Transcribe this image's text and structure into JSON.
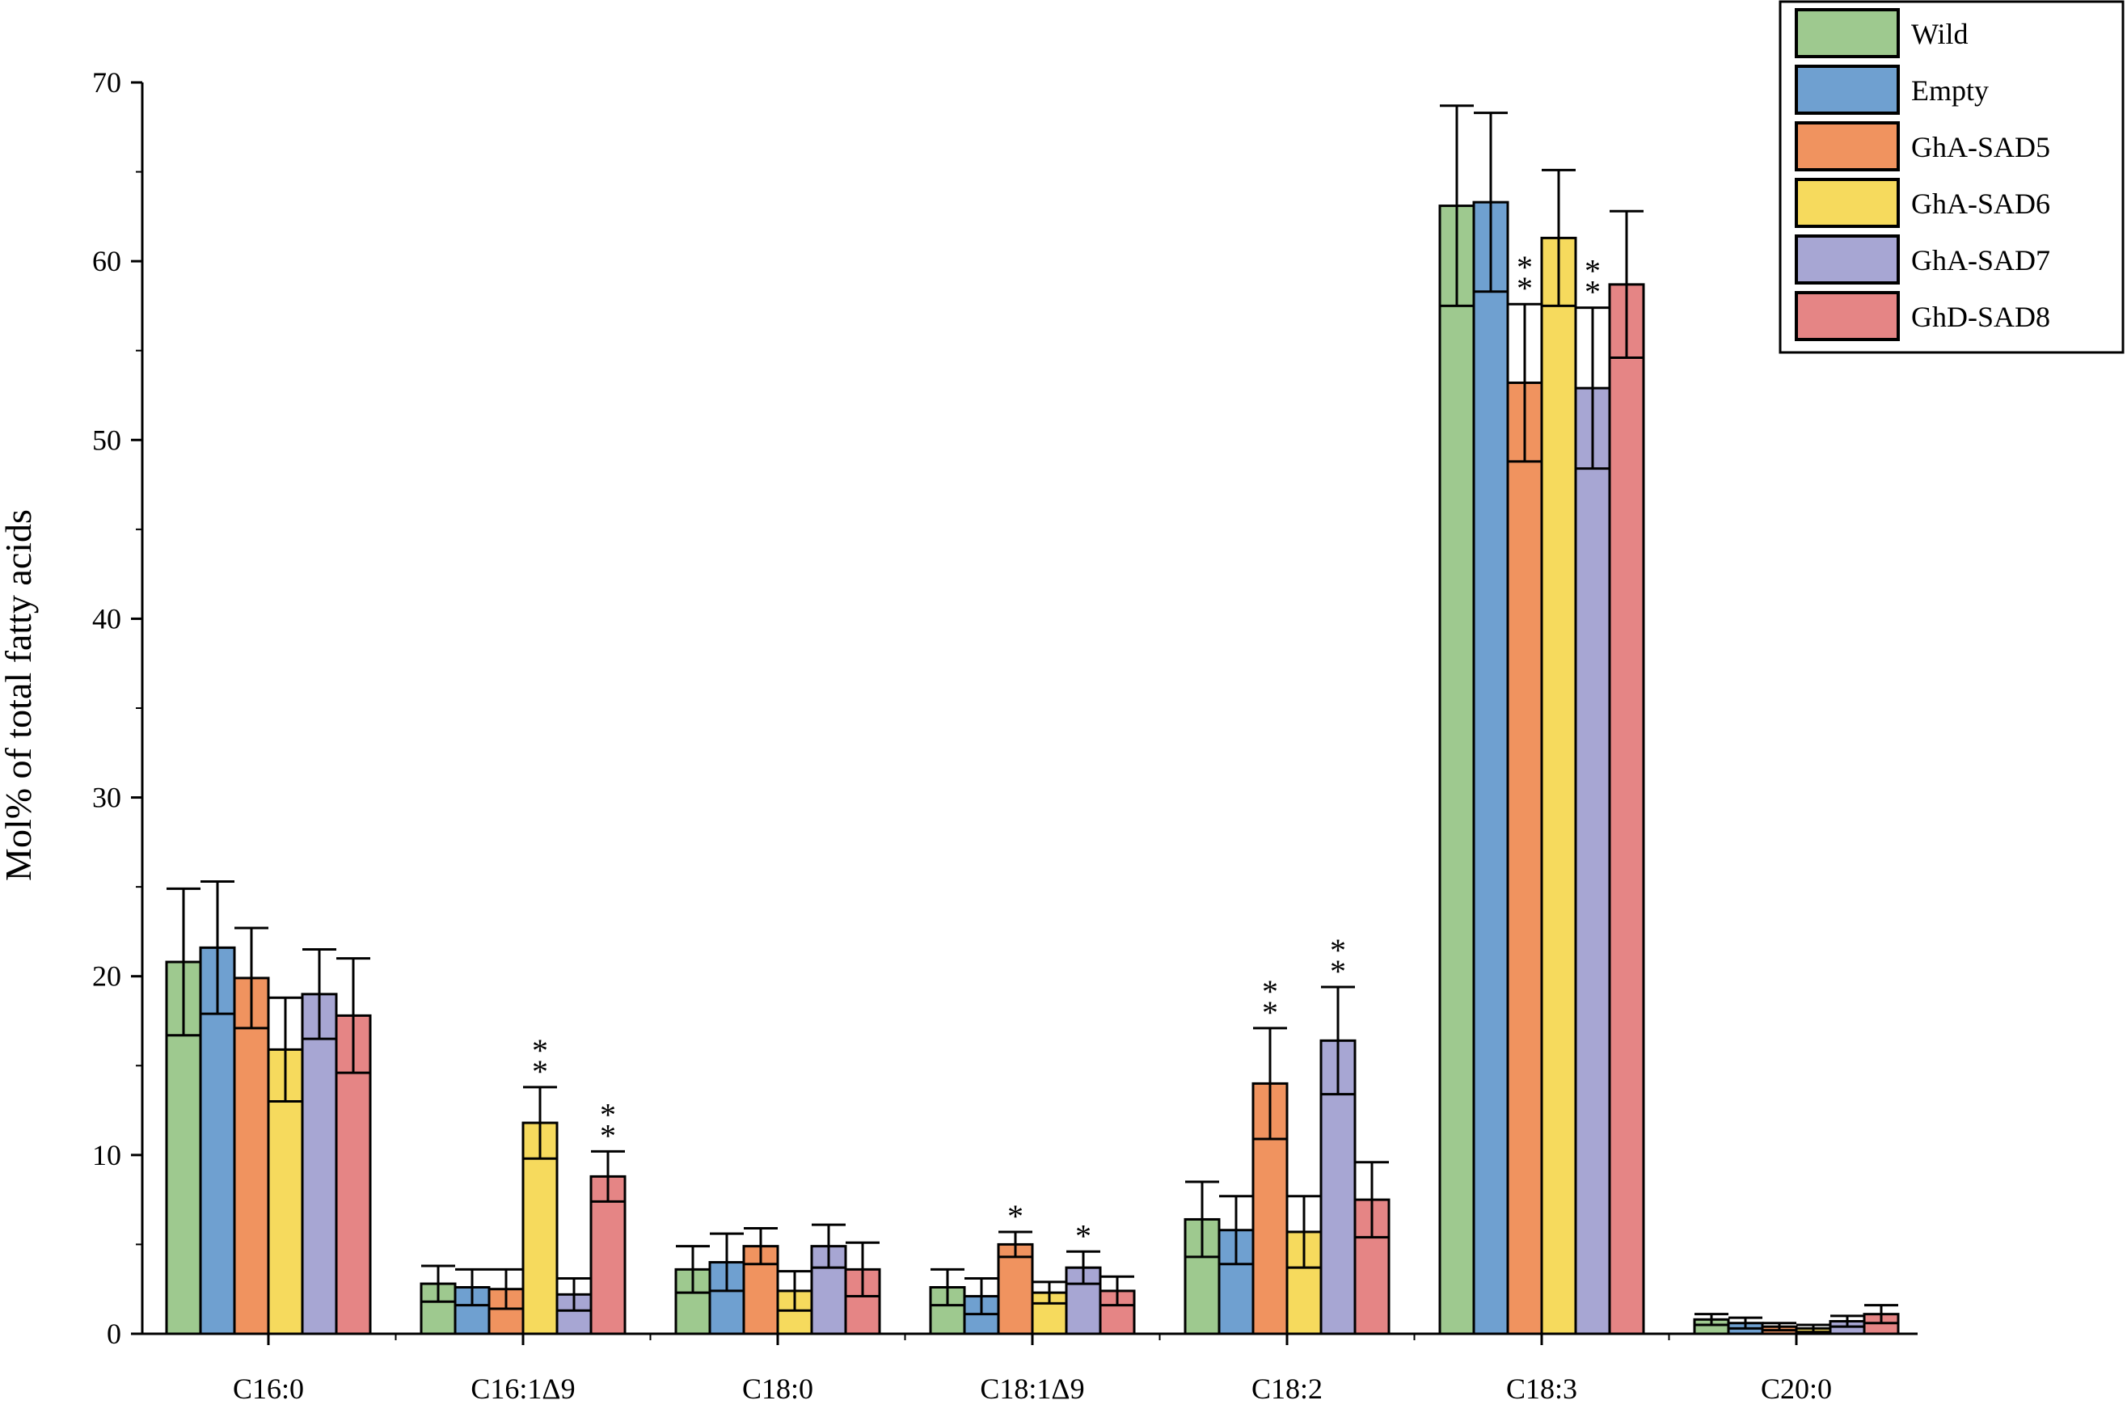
{
  "chart_data": {
    "type": "bar",
    "title": "",
    "xlabel": "",
    "ylabel": "Mol% of total fatty acids",
    "ylim": [
      0,
      70
    ],
    "yticks": [
      0,
      10,
      20,
      30,
      40,
      50,
      60,
      70
    ],
    "categories": [
      "C16:0",
      "C16:1Δ9",
      "C18:0",
      "C18:1Δ9",
      "C18:2",
      "C18:3",
      "C20:0"
    ],
    "legend_position": "top-right",
    "grid": false,
    "series": [
      {
        "name": "Wild",
        "color": "#9ec98f",
        "values": [
          20.8,
          2.8,
          3.6,
          2.6,
          6.4,
          63.1,
          0.8
        ],
        "errors": [
          4.1,
          1.0,
          1.3,
          1.0,
          2.1,
          5.6,
          0.3
        ]
      },
      {
        "name": "Empty",
        "color": "#6fa0d0",
        "values": [
          21.6,
          2.6,
          4.0,
          2.1,
          5.8,
          63.3,
          0.6
        ],
        "errors": [
          3.7,
          1.0,
          1.6,
          1.0,
          1.9,
          5.0,
          0.3
        ]
      },
      {
        "name": "GhA-SAD5",
        "color": "#f0935f",
        "values": [
          19.9,
          2.5,
          4.9,
          5.0,
          14.0,
          53.2,
          0.4
        ],
        "errors": [
          2.8,
          1.1,
          1.0,
          0.7,
          3.1,
          4.4,
          0.2
        ]
      },
      {
        "name": "GhA-SAD6",
        "color": "#f6da5d",
        "values": [
          15.9,
          11.8,
          2.4,
          2.3,
          5.7,
          61.3,
          0.3
        ],
        "errors": [
          2.9,
          2.0,
          1.1,
          0.6,
          2.0,
          3.8,
          0.2
        ]
      },
      {
        "name": "GhA-SAD7",
        "color": "#a7a6d3",
        "values": [
          19.0,
          2.2,
          4.9,
          3.7,
          16.4,
          52.9,
          0.7
        ],
        "errors": [
          2.5,
          0.9,
          1.2,
          0.9,
          3.0,
          4.5,
          0.3
        ]
      },
      {
        "name": "GhD-SAD8",
        "color": "#e58585",
        "values": [
          17.8,
          8.8,
          3.6,
          2.4,
          7.5,
          58.7,
          1.1
        ],
        "errors": [
          3.2,
          1.4,
          1.5,
          0.8,
          2.1,
          4.1,
          0.5
        ]
      }
    ],
    "annotations": [
      {
        "text": "**",
        "category": 1,
        "series": 3
      },
      {
        "text": "**",
        "category": 1,
        "series": 5
      },
      {
        "text": "*",
        "category": 3,
        "series": 2
      },
      {
        "text": "*",
        "category": 3,
        "series": 4
      },
      {
        "text": "**",
        "category": 4,
        "series": 2
      },
      {
        "text": "**",
        "category": 4,
        "series": 4
      },
      {
        "text": "**",
        "category": 5,
        "series": 2
      },
      {
        "text": "**",
        "category": 5,
        "series": 4
      }
    ]
  }
}
